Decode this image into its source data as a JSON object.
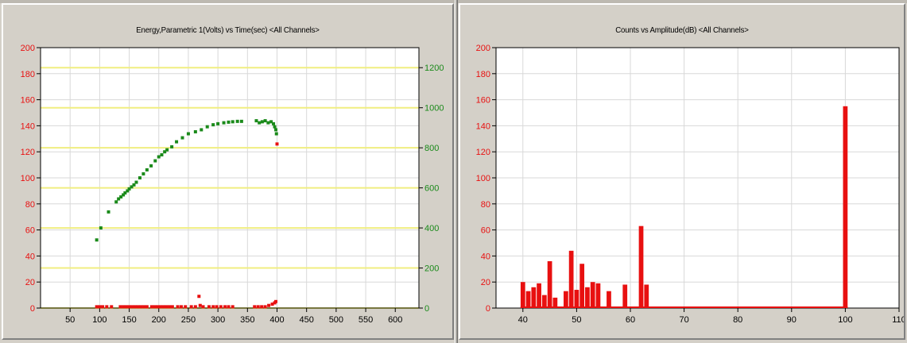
{
  "colors": {
    "red": "#e81010",
    "green": "#1a8a1a",
    "yellow_grid": "#f0ee80",
    "grid": "#d8d8d8",
    "plot_bg": "#ffffff"
  },
  "chart_data": [
    {
      "type": "scatter",
      "title": "Energy,Parametric 1(Volts) vs Time(sec) <All Channels>",
      "xlabel": "",
      "ylabel": "",
      "x_ticks": [
        50,
        100,
        150,
        200,
        250,
        300,
        350,
        400,
        450,
        500,
        550,
        600
      ],
      "xlim": [
        0,
        640
      ],
      "y_left_ticks": [
        0,
        20,
        40,
        60,
        80,
        100,
        120,
        140,
        160,
        180,
        200
      ],
      "ylim_left": [
        0,
        200
      ],
      "y_right_ticks": [
        0,
        200,
        400,
        600,
        800,
        1000,
        1200
      ],
      "ylim_right": [
        0,
        1300
      ],
      "grid": true,
      "series": [
        {
          "axis": "right",
          "color": "#1a8a1a",
          "points": [
            [
              95,
              340
            ],
            [
              102,
              400
            ],
            [
              115,
              480
            ],
            [
              128,
              530
            ],
            [
              132,
              545
            ],
            [
              136,
              555
            ],
            [
              140,
              565
            ],
            [
              143,
              575
            ],
            [
              147,
              585
            ],
            [
              150,
              595
            ],
            [
              154,
              605
            ],
            [
              158,
              615
            ],
            [
              162,
              628
            ],
            [
              168,
              650
            ],
            [
              174,
              670
            ],
            [
              180,
              690
            ],
            [
              187,
              710
            ],
            [
              194,
              735
            ],
            [
              200,
              755
            ],
            [
              205,
              765
            ],
            [
              210,
              780
            ],
            [
              214,
              790
            ],
            [
              222,
              805
            ],
            [
              230,
              830
            ],
            [
              240,
              850
            ],
            [
              250,
              870
            ],
            [
              262,
              880
            ],
            [
              272,
              890
            ],
            [
              282,
              905
            ],
            [
              292,
              915
            ],
            [
              300,
              920
            ],
            [
              310,
              925
            ],
            [
              318,
              928
            ],
            [
              325,
              930
            ],
            [
              333,
              932
            ],
            [
              340,
              932
            ],
            [
              365,
              935
            ],
            [
              370,
              925
            ],
            [
              375,
              930
            ],
            [
              380,
              935
            ],
            [
              385,
              925
            ],
            [
              390,
              930
            ],
            [
              394,
              920
            ],
            [
              396,
              905
            ],
            [
              398,
              890
            ],
            [
              399,
              870
            ]
          ]
        },
        {
          "axis": "left",
          "color": "#e81010",
          "points": [
            [
              95,
              1
            ],
            [
              100,
              1
            ],
            [
              105,
              1
            ],
            [
              112,
              1
            ],
            [
              120,
              1
            ],
            [
              135,
              1
            ],
            [
              140,
              1
            ],
            [
              145,
              1
            ],
            [
              150,
              1
            ],
            [
              155,
              1
            ],
            [
              160,
              1
            ],
            [
              165,
              1
            ],
            [
              170,
              1
            ],
            [
              175,
              1
            ],
            [
              180,
              1
            ],
            [
              188,
              1
            ],
            [
              193,
              1
            ],
            [
              198,
              1
            ],
            [
              203,
              1
            ],
            [
              208,
              1
            ],
            [
              213,
              1
            ],
            [
              218,
              1
            ],
            [
              223,
              1
            ],
            [
              232,
              1
            ],
            [
              238,
              1
            ],
            [
              245,
              1
            ],
            [
              255,
              1
            ],
            [
              262,
              1
            ],
            [
              268,
              9
            ],
            [
              270,
              2
            ],
            [
              275,
              1
            ],
            [
              285,
              1
            ],
            [
              292,
              1
            ],
            [
              298,
              1
            ],
            [
              305,
              1
            ],
            [
              312,
              1
            ],
            [
              318,
              1
            ],
            [
              325,
              1
            ],
            [
              362,
              1
            ],
            [
              368,
              1
            ],
            [
              374,
              1
            ],
            [
              380,
              1
            ],
            [
              386,
              2
            ],
            [
              392,
              3
            ],
            [
              396,
              4
            ],
            [
              398,
              5
            ],
            [
              400,
              126
            ]
          ]
        }
      ]
    },
    {
      "type": "bar",
      "title": "Counts vs Amplitude(dB) <All Channels>",
      "xlabel": "",
      "ylabel": "",
      "x_ticks": [
        40,
        50,
        60,
        70,
        80,
        90,
        100,
        110
      ],
      "xlim": [
        35,
        110
      ],
      "y_ticks": [
        0,
        20,
        40,
        60,
        80,
        100,
        120,
        140,
        160,
        180,
        200
      ],
      "ylim": [
        0,
        200
      ],
      "grid": true,
      "color": "#e81010",
      "bars": [
        [
          40,
          20
        ],
        [
          41,
          13
        ],
        [
          42,
          16
        ],
        [
          43,
          19
        ],
        [
          44,
          10
        ],
        [
          45,
          36
        ],
        [
          46,
          8
        ],
        [
          48,
          13
        ],
        [
          49,
          44
        ],
        [
          50,
          14
        ],
        [
          51,
          34
        ],
        [
          52,
          16
        ],
        [
          53,
          20
        ],
        [
          54,
          19
        ],
        [
          56,
          13
        ],
        [
          59,
          18
        ],
        [
          62,
          63
        ],
        [
          63,
          18
        ],
        [
          100,
          155
        ]
      ]
    }
  ]
}
